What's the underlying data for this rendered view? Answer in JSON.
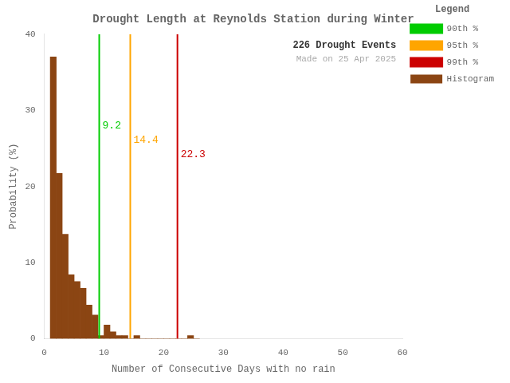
{
  "chart_data": {
    "type": "histogram",
    "title": "Drought Length at Reynolds Station during Winter",
    "xlabel": "Number of Consecutive Days with no rain",
    "ylabel": "Probability (%)",
    "name": "Histogram",
    "color": "#8B4513",
    "bins": [
      1,
      2,
      3,
      4,
      5,
      6,
      7,
      8,
      9,
      10,
      11,
      12,
      13,
      14,
      15,
      16,
      17,
      18,
      19,
      20,
      21,
      22,
      23,
      24,
      25,
      26
    ],
    "values": [
      37.0,
      21.7,
      13.7,
      8.4,
      7.5,
      6.6,
      4.4,
      3.1,
      0.4,
      1.8,
      0.9,
      0.4,
      0.4,
      0.0,
      0.4,
      0.0,
      0.0,
      0.0,
      0.0,
      0.0,
      0.0,
      0.0,
      0.0,
      0.4,
      0.0
    ],
    "xlim": [
      0,
      60
    ],
    "xticks": [
      0,
      10,
      20,
      30,
      40,
      50,
      60
    ],
    "ylim": [
      0,
      40
    ],
    "yticks": [
      0,
      10,
      20,
      30,
      40
    ],
    "vlines": [
      {
        "name": "90th %",
        "value": 9.2,
        "color": "#00CC00"
      },
      {
        "name": "95th %",
        "value": 14.4,
        "color": "#FFA500"
      },
      {
        "name": "99th %",
        "value": 22.3,
        "color": "#CC0000"
      }
    ],
    "legend": "upper right",
    "legend_title": "Legend",
    "annotations": [
      {
        "text": "226 Drought Events"
      },
      {
        "text": "Made on 25 Apr 2025",
        "color": "#AAAAAA"
      }
    ],
    "grid": false
  }
}
